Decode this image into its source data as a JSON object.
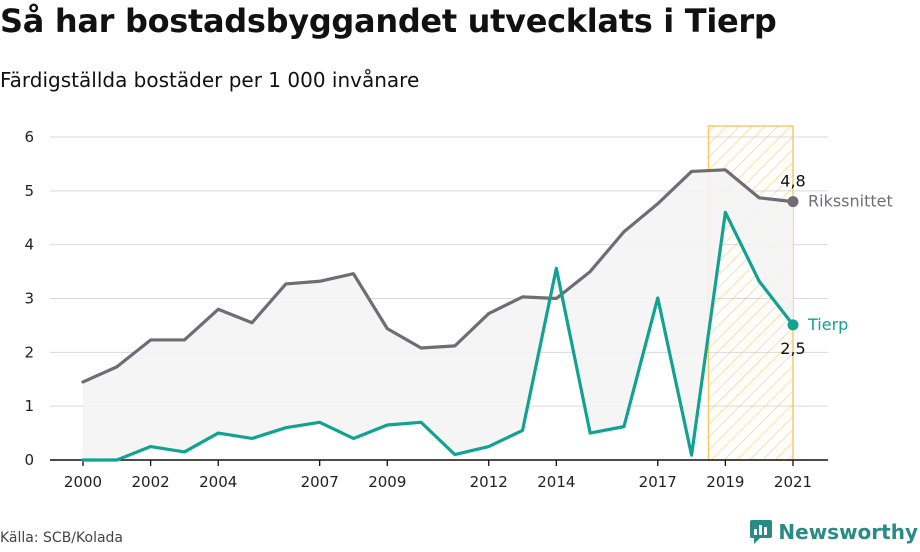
{
  "title": "Så har bostadsbyggandet utvecklats i Tierp",
  "subtitle": "Färdigställda bostäder per 1 000 invånare",
  "source": "Källa: SCB/Kolada",
  "brand": "Newsworthy",
  "colors": {
    "national": "#6f6d72",
    "tierp": "#12a292",
    "highlight": "#f5c860",
    "fill": "#f4f4f5",
    "brand": "#2a8a86"
  },
  "chart_data": {
    "type": "line",
    "x": [
      2000,
      2001,
      2002,
      2003,
      2004,
      2005,
      2006,
      2007,
      2008,
      2009,
      2010,
      2011,
      2012,
      2013,
      2014,
      2015,
      2016,
      2017,
      2018,
      2019,
      2020,
      2021
    ],
    "xticks": [
      2000,
      2002,
      2004,
      2007,
      2009,
      2012,
      2014,
      2017,
      2019,
      2021
    ],
    "yticks": [
      0,
      1,
      2,
      3,
      4,
      5,
      6
    ],
    "ylim": [
      0,
      6
    ],
    "xlim": [
      2000,
      2021
    ],
    "highlight_range": [
      2018.5,
      2021
    ],
    "series": [
      {
        "name": "Rikssnittet",
        "end_label": "4,8",
        "color": "#6f6d72",
        "values": [
          1.45,
          1.73,
          2.23,
          2.23,
          2.8,
          2.55,
          3.27,
          3.32,
          3.46,
          2.44,
          2.08,
          2.12,
          2.72,
          3.03,
          3.0,
          3.5,
          4.24,
          4.76,
          5.36,
          5.39,
          4.87,
          4.8
        ]
      },
      {
        "name": "Tierp",
        "end_label": "2,5",
        "color": "#12a292",
        "values": [
          0.0,
          0.0,
          0.25,
          0.15,
          0.5,
          0.4,
          0.6,
          0.7,
          0.4,
          0.65,
          0.7,
          0.1,
          0.25,
          0.55,
          3.56,
          0.5,
          0.62,
          3.01,
          0.09,
          4.6,
          3.32,
          2.51
        ]
      }
    ],
    "grid": true
  }
}
